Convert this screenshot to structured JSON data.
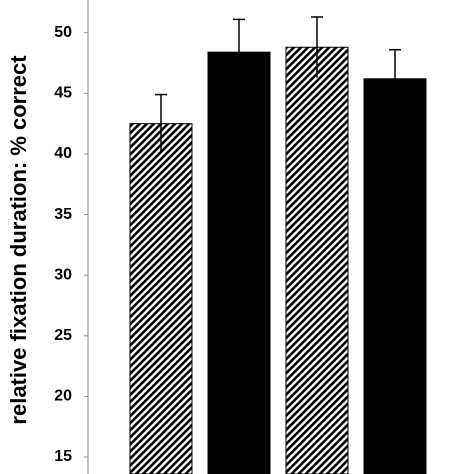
{
  "chart_data": {
    "type": "bar",
    "y_label": "relative fixation duration: % correct",
    "categories": [
      null,
      null,
      null,
      null
    ],
    "values": [
      42.5,
      48.4,
      48.8,
      46.2
    ],
    "errors": [
      2.4,
      2.7,
      2.5,
      2.4
    ],
    "fills": [
      "hatch",
      "solid",
      "hatch",
      "solid"
    ],
    "color": "#000000",
    "ylim": [
      13.6,
      52.7
    ],
    "yticks": [
      15,
      20,
      25,
      30,
      35,
      40,
      45,
      50
    ],
    "grid": false
  }
}
